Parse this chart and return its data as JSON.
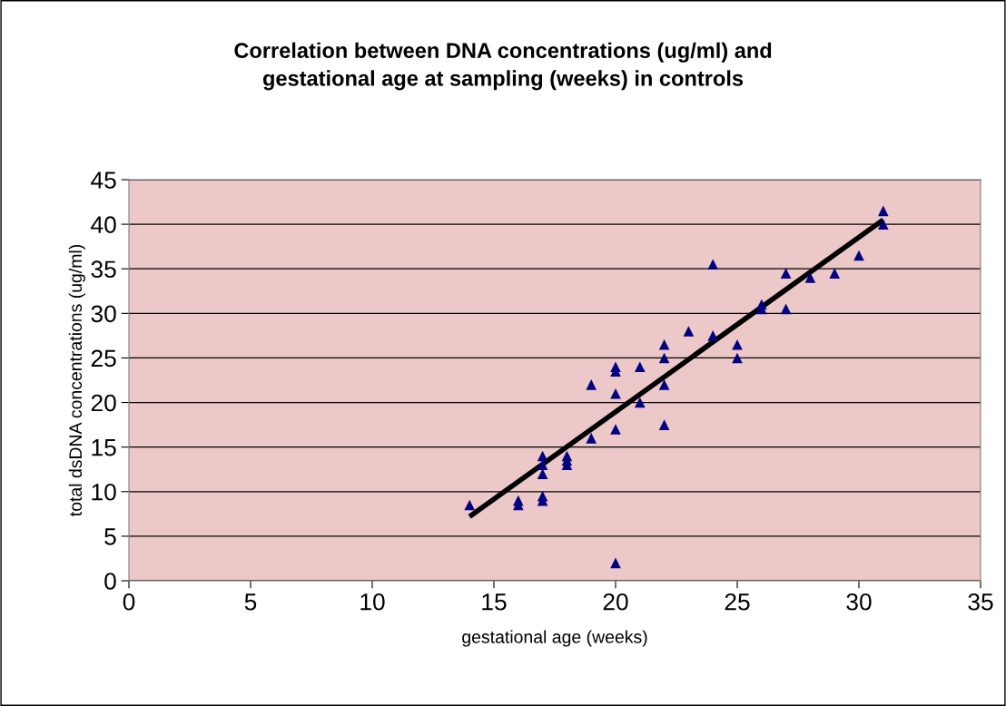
{
  "chart_data": {
    "type": "scatter",
    "title": "Correlation between DNA concentrations (ug/ml) and\ngestational age at sampling (weeks) in controls",
    "xlabel": "gestational age (weeks)",
    "ylabel": "total dsDNA concentrations (ug/ml)",
    "xlim": [
      0,
      35
    ],
    "xticks": [
      0,
      5,
      10,
      15,
      20,
      25,
      30,
      35
    ],
    "ylim": [
      0,
      45
    ],
    "yticks": [
      0,
      5,
      10,
      15,
      20,
      25,
      30,
      35,
      40,
      45
    ],
    "grid": "y",
    "series": [
      {
        "marker": "triangle",
        "color": "#000080",
        "x": [
          14,
          16,
          16,
          17,
          17,
          17,
          17,
          17,
          18,
          18,
          18,
          19,
          19,
          20,
          20,
          20,
          20,
          20,
          21,
          21,
          22,
          22,
          22,
          22,
          23,
          24,
          24,
          25,
          25,
          26,
          26,
          27,
          27,
          28,
          29,
          30,
          31,
          31
        ],
        "values": [
          8.5,
          8.5,
          9,
          9,
          9.5,
          12,
          13,
          14,
          13,
          13.5,
          14,
          16,
          22,
          2,
          17,
          21,
          23.5,
          24,
          20,
          24,
          17.5,
          22,
          25,
          26.5,
          28,
          27.5,
          35.5,
          25,
          26.5,
          30.5,
          31,
          30.5,
          34.5,
          34,
          34.5,
          36.5,
          40,
          41.5
        ]
      },
      {
        "type": "line",
        "marker": "none",
        "color": "#000000",
        "x": [
          14,
          31
        ],
        "values": [
          7.2,
          40.5
        ]
      }
    ]
  }
}
